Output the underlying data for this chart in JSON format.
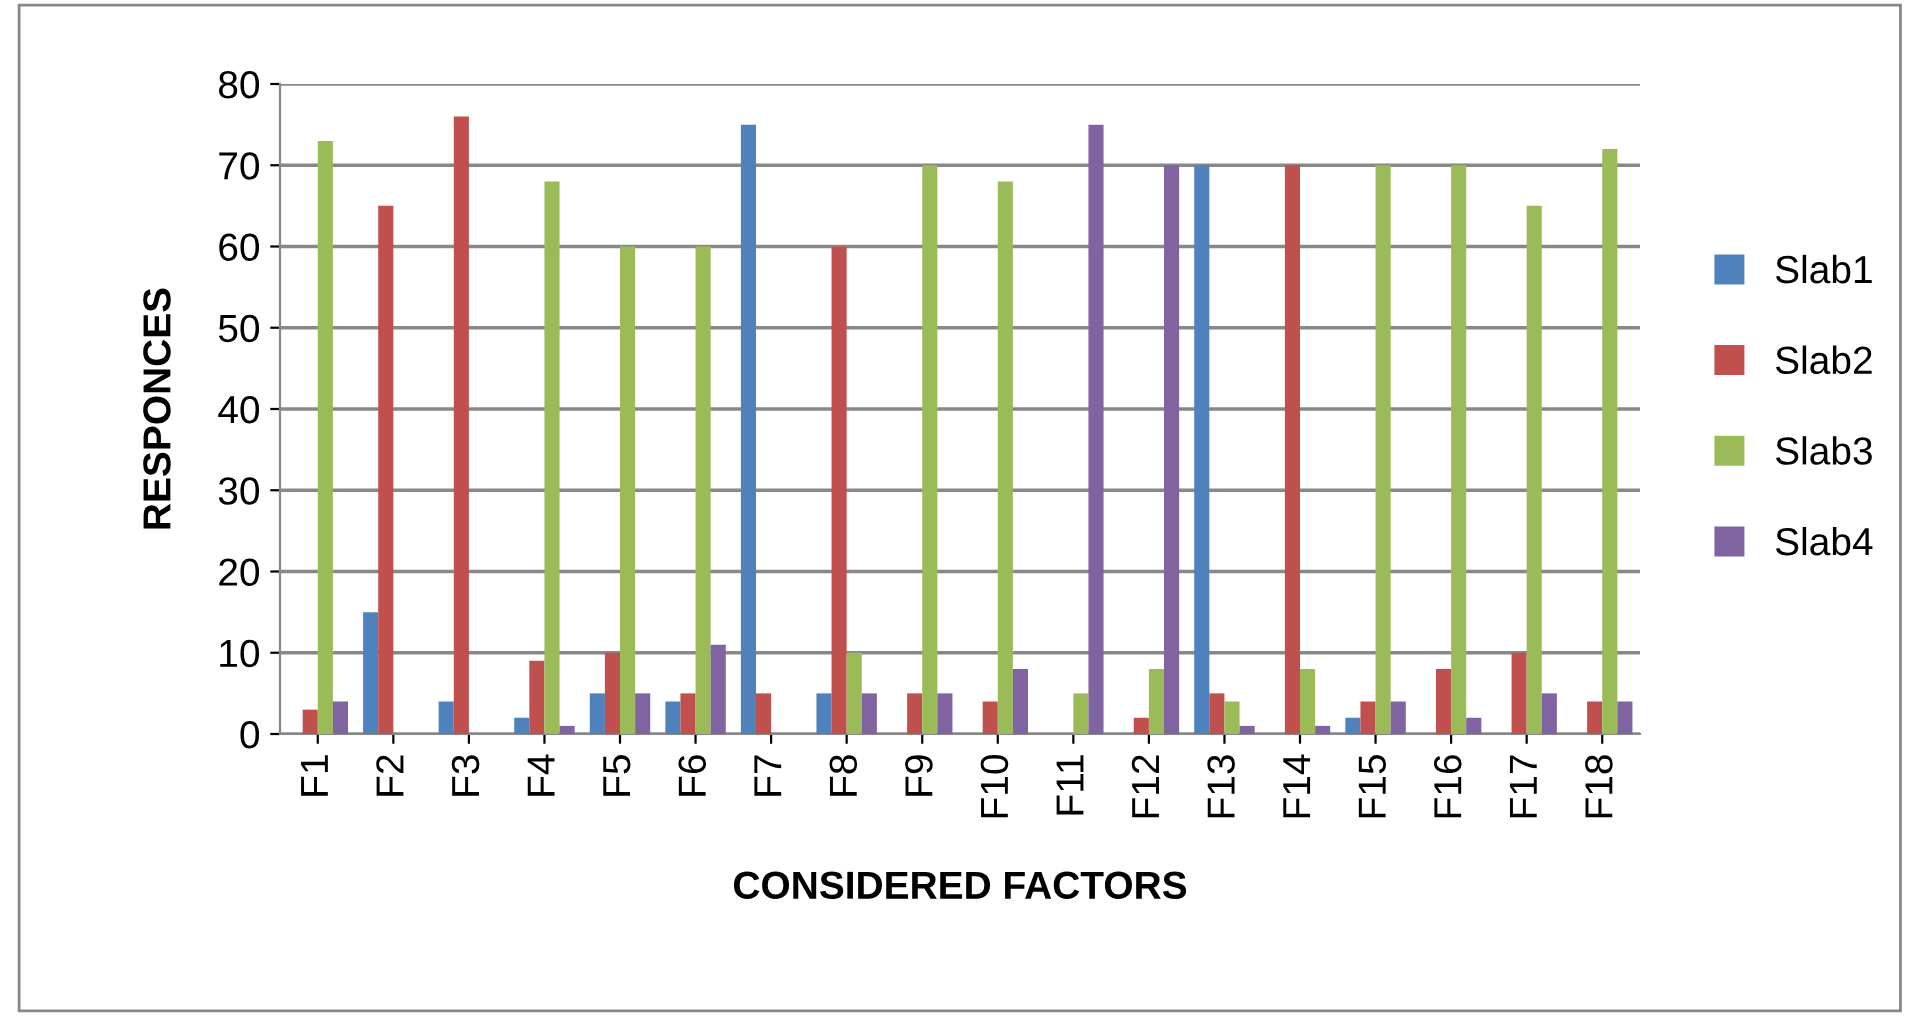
{
  "chart_data": {
    "type": "bar",
    "xlabel": "CONSIDERED FACTORS",
    "ylabel": "RESPONCES",
    "categories": [
      "F1",
      "F2",
      "F3",
      "F4",
      "F5",
      "F6",
      "F7",
      "F8",
      "F9",
      "F10",
      "F11",
      "F12",
      "F13",
      "F14",
      "F15",
      "F16",
      "F17",
      "F18"
    ],
    "series": [
      {
        "name": "Slab1",
        "color": "#4f81bd",
        "values": [
          0,
          15,
          4,
          2,
          5,
          4,
          75,
          5,
          0,
          0,
          0,
          0,
          70,
          0,
          2,
          0,
          0,
          0
        ]
      },
      {
        "name": "Slab2",
        "color": "#c0504d",
        "values": [
          3,
          65,
          76,
          9,
          10,
          5,
          5,
          60,
          5,
          4,
          0,
          2,
          5,
          70,
          4,
          8,
          10,
          4
        ]
      },
      {
        "name": "Slab3",
        "color": "#9bbb59",
        "values": [
          73,
          0,
          0,
          68,
          60,
          60,
          0,
          10,
          70,
          68,
          5,
          8,
          4,
          8,
          70,
          70,
          65,
          72
        ]
      },
      {
        "name": "Slab4",
        "color": "#8064a2",
        "values": [
          4,
          0,
          0,
          1,
          5,
          11,
          0,
          5,
          5,
          8,
          75,
          70,
          1,
          1,
          4,
          2,
          5,
          4
        ]
      }
    ],
    "ylim": [
      0,
      80
    ],
    "yticks": [
      0,
      10,
      20,
      30,
      40,
      50,
      60,
      70,
      80
    ],
    "grid": "y",
    "legend": "right"
  }
}
